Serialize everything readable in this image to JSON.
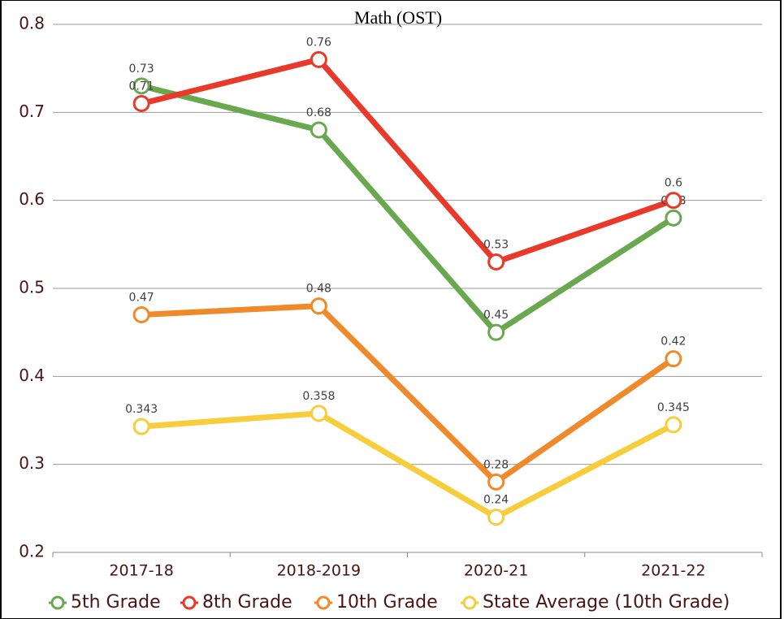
{
  "chart_data": {
    "type": "line",
    "title": "Math (OST)",
    "categories": [
      "2017-18",
      "2018-2019",
      "2020-21",
      "2021-22"
    ],
    "series": [
      {
        "name": "5th Grade",
        "color": "#6aa84f",
        "values": [
          0.73,
          0.68,
          0.45,
          0.58
        ]
      },
      {
        "name": "8th Grade",
        "color": "#e8392a",
        "values": [
          0.71,
          0.76,
          0.53,
          0.6
        ]
      },
      {
        "name": "10th Grade",
        "color": "#f0892a",
        "values": [
          0.47,
          0.48,
          0.28,
          0.42
        ]
      },
      {
        "name": "State Average (10th Grade)",
        "color": "#f7cd3c",
        "values": [
          0.343,
          0.358,
          0.24,
          0.345
        ]
      }
    ],
    "ylim": [
      0.2,
      0.8
    ],
    "yticks": [
      0.2,
      0.3,
      0.4,
      0.5,
      0.6,
      0.7,
      0.8
    ],
    "grid": true,
    "legend": "bottom"
  }
}
